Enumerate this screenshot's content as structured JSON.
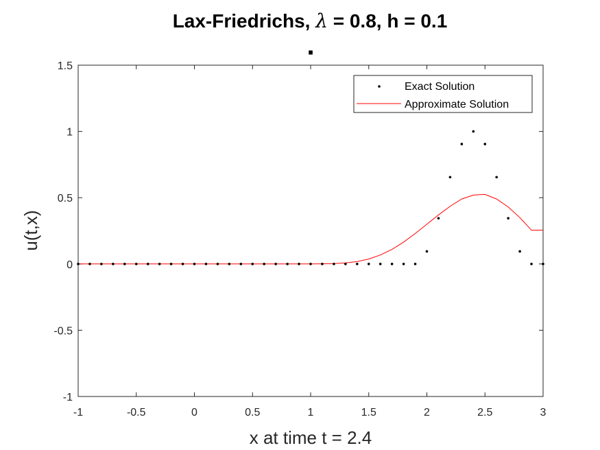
{
  "chart_data": {
    "type": "line",
    "title_prefix": "Lax-Friedrichs, ",
    "title_lambda": "λ",
    "title_suffix": " = 0.8, h = 0.1",
    "xlabel": "x at time t = 2.4",
    "ylabel": "u(t,x)",
    "xlim": [
      -1,
      3
    ],
    "ylim": [
      -1,
      1.5
    ],
    "xticks": [
      -1,
      -0.5,
      0,
      0.5,
      1,
      1.5,
      2,
      2.5,
      3
    ],
    "xtick_labels": [
      "-1",
      "-0.5",
      "0",
      "0.5",
      "1",
      "1.5",
      "2",
      "2.5",
      "3"
    ],
    "yticks": [
      -1,
      -0.5,
      0,
      0.5,
      1,
      1.5
    ],
    "ytick_labels": [
      "-1",
      "-0.5",
      "0",
      "0.5",
      "1",
      "1.5"
    ],
    "grid": false,
    "legend_position": "top-right",
    "series": [
      {
        "name": "Exact Solution",
        "style": "dots",
        "color": "#000000",
        "x": [
          -1,
          -0.9,
          -0.8,
          -0.7,
          -0.6,
          -0.5,
          -0.4,
          -0.3,
          -0.2,
          -0.1,
          0,
          0.1,
          0.2,
          0.3,
          0.4,
          0.5,
          0.6,
          0.7,
          0.8,
          0.9,
          1,
          1.1,
          1.2,
          1.3,
          1.4,
          1.5,
          1.6,
          1.7,
          1.8,
          1.9,
          2,
          2.1,
          2.2,
          2.3,
          2.4,
          2.5,
          2.6,
          2.7,
          2.8,
          2.9,
          3
        ],
        "y": [
          0,
          0,
          0,
          0,
          0,
          0,
          0,
          0,
          0,
          0,
          0,
          0,
          0,
          0,
          0,
          0,
          0,
          0,
          0,
          0,
          0,
          0,
          0,
          0,
          0,
          0,
          0,
          0,
          0,
          0,
          0.095,
          0.345,
          0.655,
          0.905,
          1.0,
          0.905,
          0.655,
          0.345,
          0.095,
          0,
          0
        ]
      },
      {
        "name": "Approximate Solution",
        "style": "line",
        "color": "#ff0000",
        "x": [
          -1,
          -0.9,
          -0.8,
          -0.7,
          -0.6,
          -0.5,
          -0.4,
          -0.3,
          -0.2,
          -0.1,
          0,
          0.1,
          0.2,
          0.3,
          0.4,
          0.5,
          0.6,
          0.7,
          0.8,
          0.9,
          1,
          1.1,
          1.2,
          1.3,
          1.4,
          1.5,
          1.6,
          1.7,
          1.8,
          1.9,
          2,
          2.1,
          2.2,
          2.3,
          2.4,
          2.5,
          2.6,
          2.7,
          2.8,
          2.9,
          3
        ],
        "y": [
          0,
          0,
          0,
          0,
          0,
          0,
          0,
          0,
          0,
          0,
          0,
          0,
          0,
          0,
          0,
          0,
          0,
          0,
          0,
          0,
          0,
          0.001,
          0.003,
          0.008,
          0.018,
          0.037,
          0.068,
          0.11,
          0.165,
          0.23,
          0.3,
          0.37,
          0.435,
          0.49,
          0.52,
          0.525,
          0.49,
          0.43,
          0.35,
          0.255,
          0.255
        ]
      }
    ],
    "annotations": [
      {
        "text": ".",
        "x": 1.0,
        "y": 1.58
      }
    ]
  }
}
